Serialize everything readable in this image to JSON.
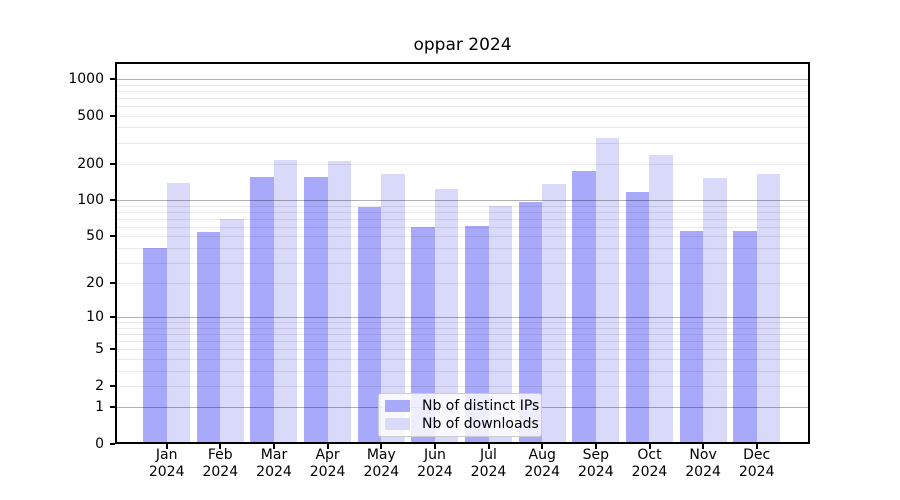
{
  "title": "oppar 2024",
  "colors": {
    "ips": "#a9a9fb",
    "downloads": "#d9d9fa",
    "grid_major": "#b0b0b0",
    "grid_minor": "#e9e9e9",
    "spine": "#000000"
  },
  "legend": {
    "items": [
      {
        "label": "Nb of distinct IPs",
        "color_key": "ips"
      },
      {
        "label": "Nb of downloads",
        "color_key": "downloads"
      }
    ]
  },
  "chart_data": {
    "type": "bar",
    "title": "oppar 2024",
    "categories": [
      "Jan",
      "Feb",
      "Mar",
      "Apr",
      "May",
      "Jun",
      "Jul",
      "Aug",
      "Sep",
      "Oct",
      "Nov",
      "Dec"
    ],
    "year": "2024",
    "series": [
      {
        "name": "Nb of distinct IPs",
        "values": [
          40,
          54,
          156,
          156,
          88,
          60,
          61,
          97,
          175,
          117,
          55,
          55
        ]
      },
      {
        "name": "Nb of downloads",
        "values": [
          138,
          70,
          215,
          212,
          164,
          124,
          89,
          137,
          324,
          236,
          154,
          164
        ]
      }
    ],
    "xlabel": "",
    "ylabel": "",
    "yscale": "log10(1+x)",
    "yticks": [
      0,
      1,
      2,
      5,
      10,
      20,
      50,
      100,
      200,
      500,
      1000
    ],
    "ylim": [
      0,
      1380
    ],
    "grid": true,
    "grid_major_at": [
      1,
      10,
      100,
      1000
    ],
    "legend_position": "lower center"
  }
}
